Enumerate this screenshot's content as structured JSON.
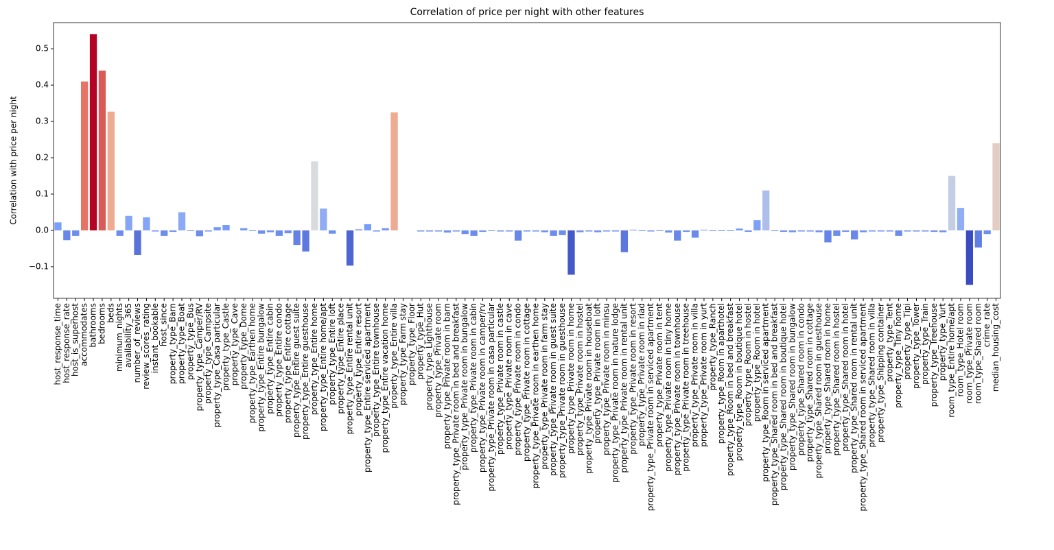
{
  "chart_data": {
    "type": "bar",
    "title": "Correlation of price per night with other features",
    "y_label": "Correlation with price per night",
    "palette": "coolwarm",
    "categories": [
      "host_response_time",
      "host_response_rate",
      "host_is_superhost",
      "accommodates",
      "bathrooms",
      "bedrooms",
      "beds",
      "minimum_nights",
      "availability_365",
      "number_of_reviews",
      "review_scores_rating",
      "instant_bookable",
      "host_since",
      "property_type_Barn",
      "property_type_Boat",
      "property_type_Bus",
      "property_type_Camper/RV",
      "property_type_Campsite",
      "property_type_Casa particular",
      "property_type_Castle",
      "property_type_Cave",
      "property_type_Dome",
      "property_type_Earthen home",
      "property_type_Entire bungalow",
      "property_type_Entire cabin",
      "property_type_Entire condo",
      "property_type_Entire cottage",
      "property_type_Entire guest suite",
      "property_type_Entire guesthouse",
      "property_type_Entire home",
      "property_type_Entire home/apt",
      "property_type_Entire loft",
      "property_type_Entire place",
      "property_type_Entire rental unit",
      "property_type_Entire resort",
      "property_type_Entire serviced apartment",
      "property_type_Entire townhouse",
      "property_type_Entire vacation home",
      "property_type_Entire villa",
      "property_type_Farm stay",
      "property_type_Floor",
      "property_type_Hut",
      "property_type_Lighthouse",
      "property_type_Private room",
      "property_type_Private room in barn",
      "property_type_Private room in bed and breakfast",
      "property_type_Private room in bungalow",
      "property_type_Private room in cabin",
      "property_type_Private room in camper/rv",
      "property_type_Private room in casa particular",
      "property_type_Private room in castle",
      "property_type_Private room in cave",
      "property_type_Private room in condo",
      "property_type_Private room in cottage",
      "property_type_Private room in earthen home",
      "property_type_Private room in farm stay",
      "property_type_Private room in guest suite",
      "property_type_Private room in guesthouse",
      "property_type_Private room in home",
      "property_type_Private room in hostel",
      "property_type_Private room in houseboat",
      "property_type_Private room in loft",
      "property_type_Private room in minsu",
      "property_type_Private room in nature lodge",
      "property_type_Private room in rental unit",
      "property_type_Private room in resort",
      "property_type_Private room in riad",
      "property_type_Private room in serviced apartment",
      "property_type_Private room in tent",
      "property_type_Private room in tiny home",
      "property_type_Private room in townhouse",
      "property_type_Private room in treehouse",
      "property_type_Private room in villa",
      "property_type_Private room in yurt",
      "property_type_Ranch",
      "property_type_Room in aparthotel",
      "property_type_Room in bed and breakfast",
      "property_type_Room in boutique hotel",
      "property_type_Room in hostel",
      "property_type_Room in hotel",
      "property_type_Room in serviced apartment",
      "property_type_Shared room in bed and breakfast",
      "property_type_Shared room in boutique hotel",
      "property_type_Shared room in bungalow",
      "property_type_Shared room in condo",
      "property_type_Shared room in cottage",
      "property_type_Shared room in guesthouse",
      "property_type_Shared room in home",
      "property_type_Shared room in hostel",
      "property_type_Shared room in hotel",
      "property_type_Shared room in rental unit",
      "property_type_Shared room in serviced apartment",
      "property_type_Shared room in villa",
      "property_type_Shipping container",
      "property_type_Tent",
      "property_type_Tiny home",
      "property_type_Tipi",
      "property_type_Tower",
      "property_type_Train",
      "property_type_Treehouse",
      "property_type_Yurt",
      "room_type_Entire home/apt",
      "room_type_Hotel room",
      "room_type_Private room",
      "room_type_Shared room",
      "crime_rate",
      "median_housing_cost"
    ],
    "values": [
      0.022,
      -0.027,
      -0.015,
      0.41,
      0.54,
      0.44,
      0.327,
      -0.015,
      0.04,
      -0.068,
      0.036,
      -0.003,
      -0.015,
      -0.004,
      0.05,
      -0.002,
      -0.016,
      -0.003,
      0.009,
      0.015,
      0,
      0.006,
      -0.002,
      -0.009,
      -0.005,
      -0.015,
      -0.008,
      -0.04,
      -0.058,
      0.19,
      0.06,
      -0.009,
      0,
      -0.097,
      0.003,
      0.017,
      -0.003,
      0.006,
      0.325,
      0,
      0,
      -0.003,
      -0.003,
      -0.003,
      -0.006,
      -0.003,
      -0.01,
      -0.015,
      -0.004,
      -0.002,
      -0.003,
      -0.003,
      -0.028,
      -0.003,
      -0.003,
      -0.005,
      -0.015,
      -0.013,
      -0.122,
      -0.005,
      -0.003,
      -0.005,
      -0.003,
      -0.003,
      -0.06,
      0.002,
      -0.002,
      -0.003,
      -0.002,
      -0.006,
      -0.028,
      -0.004,
      -0.02,
      0.002,
      -0.002,
      -0.002,
      -0.002,
      0.005,
      -0.004,
      0.028,
      0.11,
      -0.002,
      -0.004,
      -0.005,
      -0.003,
      -0.003,
      -0.005,
      -0.033,
      -0.015,
      -0.004,
      -0.025,
      -0.005,
      -0.003,
      -0.003,
      -0.003,
      -0.015,
      -0.003,
      -0.003,
      -0.003,
      -0.004,
      -0.005,
      0.15,
      0.062,
      -0.15,
      -0.047,
      -0.01,
      0.24
    ],
    "ylim": [
      -0.187,
      0.572
    ],
    "yticks": [
      {
        "value": -0.1,
        "label": "−0.1"
      },
      {
        "value": 0,
        "label": "0.0"
      },
      0.1,
      0.2,
      0.3,
      0.4,
      0.5
    ]
  }
}
